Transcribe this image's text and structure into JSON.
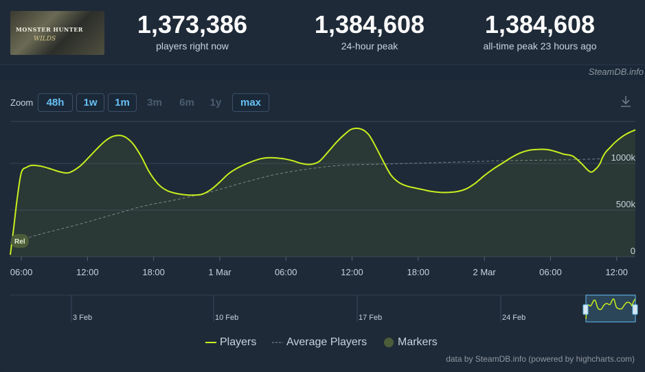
{
  "header": {
    "thumb_title": "MONSTER HUNTER",
    "thumb_subtitle": "WILDS",
    "stats": [
      {
        "value": "1,373,386",
        "label": "players right now"
      },
      {
        "value": "1,384,608",
        "label": "24-hour peak"
      },
      {
        "value": "1,384,608",
        "label": "all-time peak 23 hours ago"
      }
    ],
    "credit": "SteamDB.info"
  },
  "zoom": {
    "label": "Zoom",
    "buttons": [
      {
        "label": "48h",
        "enabled": true
      },
      {
        "label": "1w",
        "enabled": true
      },
      {
        "label": "1m",
        "enabled": true
      },
      {
        "label": "3m",
        "enabled": false
      },
      {
        "label": "6m",
        "enabled": false
      },
      {
        "label": "1y",
        "enabled": false
      },
      {
        "label": "max",
        "enabled": true
      }
    ],
    "download_icon": "download-icon"
  },
  "chart_data": {
    "type": "line",
    "x_unit": "hours since 00:00 on 28 Feb",
    "x_ticks": [
      {
        "x": 6,
        "label": "06:00"
      },
      {
        "x": 12,
        "label": "12:00"
      },
      {
        "x": 18,
        "label": "18:00"
      },
      {
        "x": 24,
        "label": "1 Mar"
      },
      {
        "x": 30,
        "label": "06:00"
      },
      {
        "x": 36,
        "label": "12:00"
      },
      {
        "x": 42,
        "label": "18:00"
      },
      {
        "x": 48,
        "label": "2 Mar"
      },
      {
        "x": 54,
        "label": "06:00"
      },
      {
        "x": 60,
        "label": "12:00"
      }
    ],
    "xlim": [
      5.0,
      61.7
    ],
    "ylim": [
      0,
      1450000
    ],
    "y_ticks": [
      {
        "value": 0,
        "label": "0"
      },
      {
        "value": 500000,
        "label": "500k"
      },
      {
        "value": 1000000,
        "label": "1000k"
      }
    ],
    "grid": true,
    "series": [
      {
        "name": "Players",
        "color": "#c8f01e",
        "x": [
          5.0,
          5.3,
          5.6,
          6.0,
          6.5,
          7.0,
          7.8,
          8.7,
          9.5,
          10.3,
          11.2,
          12.0,
          12.8,
          13.6,
          14.3,
          15.0,
          15.6,
          16.2,
          16.9,
          17.6,
          18.4,
          19.2,
          20.0,
          20.8,
          21.6,
          22.4,
          23.2,
          24.0,
          24.8,
          25.6,
          26.5,
          27.4,
          28.2,
          29.0,
          29.8,
          30.6,
          31.4,
          32.2,
          33.0,
          33.8,
          34.6,
          35.4,
          36.0,
          36.8,
          37.5,
          38.1,
          38.8,
          39.5,
          40.2,
          40.9,
          41.6,
          42.4,
          43.2,
          44.0,
          44.8,
          45.6,
          46.4,
          47.2,
          48.0,
          48.8,
          49.6,
          50.4,
          51.2,
          52.0,
          52.8,
          53.6,
          54.4,
          55.2,
          56.0,
          56.8,
          57.6,
          58.1,
          58.5,
          58.7,
          59.0,
          59.4,
          59.8,
          60.3,
          60.8,
          61.3,
          61.7
        ],
        "y": [
          20000,
          300000,
          600000,
          900000,
          960000,
          980000,
          970000,
          940000,
          910000,
          900000,
          960000,
          1050000,
          1150000,
          1240000,
          1290000,
          1300000,
          1270000,
          1200000,
          1070000,
          910000,
          780000,
          710000,
          680000,
          665000,
          660000,
          670000,
          720000,
          800000,
          890000,
          950000,
          1000000,
          1040000,
          1060000,
          1060000,
          1050000,
          1030000,
          1000000,
          990000,
          1020000,
          1120000,
          1230000,
          1320000,
          1370000,
          1370000,
          1310000,
          1190000,
          1030000,
          880000,
          800000,
          760000,
          740000,
          720000,
          700000,
          690000,
          690000,
          700000,
          730000,
          790000,
          870000,
          940000,
          1000000,
          1060000,
          1110000,
          1140000,
          1150000,
          1150000,
          1130000,
          1100000,
          1080000,
          1000000,
          910000,
          940000,
          1000000,
          1060000,
          1120000,
          1170000,
          1220000,
          1270000,
          1310000,
          1340000,
          1360000
        ]
      },
      {
        "name": "Average Players",
        "color": "#8f98a0",
        "dashed": true,
        "x": [
          5.0,
          8.0,
          11.0,
          14.0,
          17.0,
          20.0,
          23.0,
          26.0,
          29.0,
          32.0,
          35.0,
          38.0,
          41.0,
          44.0,
          47.0,
          50.0,
          53.0,
          56.0,
          58.5
        ],
        "y": [
          150000,
          250000,
          340000,
          440000,
          540000,
          610000,
          690000,
          790000,
          880000,
          940000,
          980000,
          990000,
          1000000,
          1010000,
          1020000,
          1030000,
          1035000,
          1040000,
          1050000
        ]
      }
    ],
    "markers": [
      {
        "x": 5.8,
        "label": "Rel"
      }
    ],
    "legend": {
      "placement": "bottom-center",
      "items": [
        {
          "name": "Players",
          "color": "#c8f01e",
          "symbol": "line"
        },
        {
          "name": "Average Players",
          "color": "#8f98a0",
          "symbol": "dashed-line"
        },
        {
          "name": "Markers",
          "color": "#4c5d3a",
          "symbol": "circle"
        }
      ]
    },
    "navigator": {
      "labels": [
        "3 Feb",
        "10 Feb",
        "17 Feb",
        "24 Feb"
      ]
    }
  },
  "footer": {
    "credit": "data by SteamDB.info (powered by highcharts.com)"
  }
}
